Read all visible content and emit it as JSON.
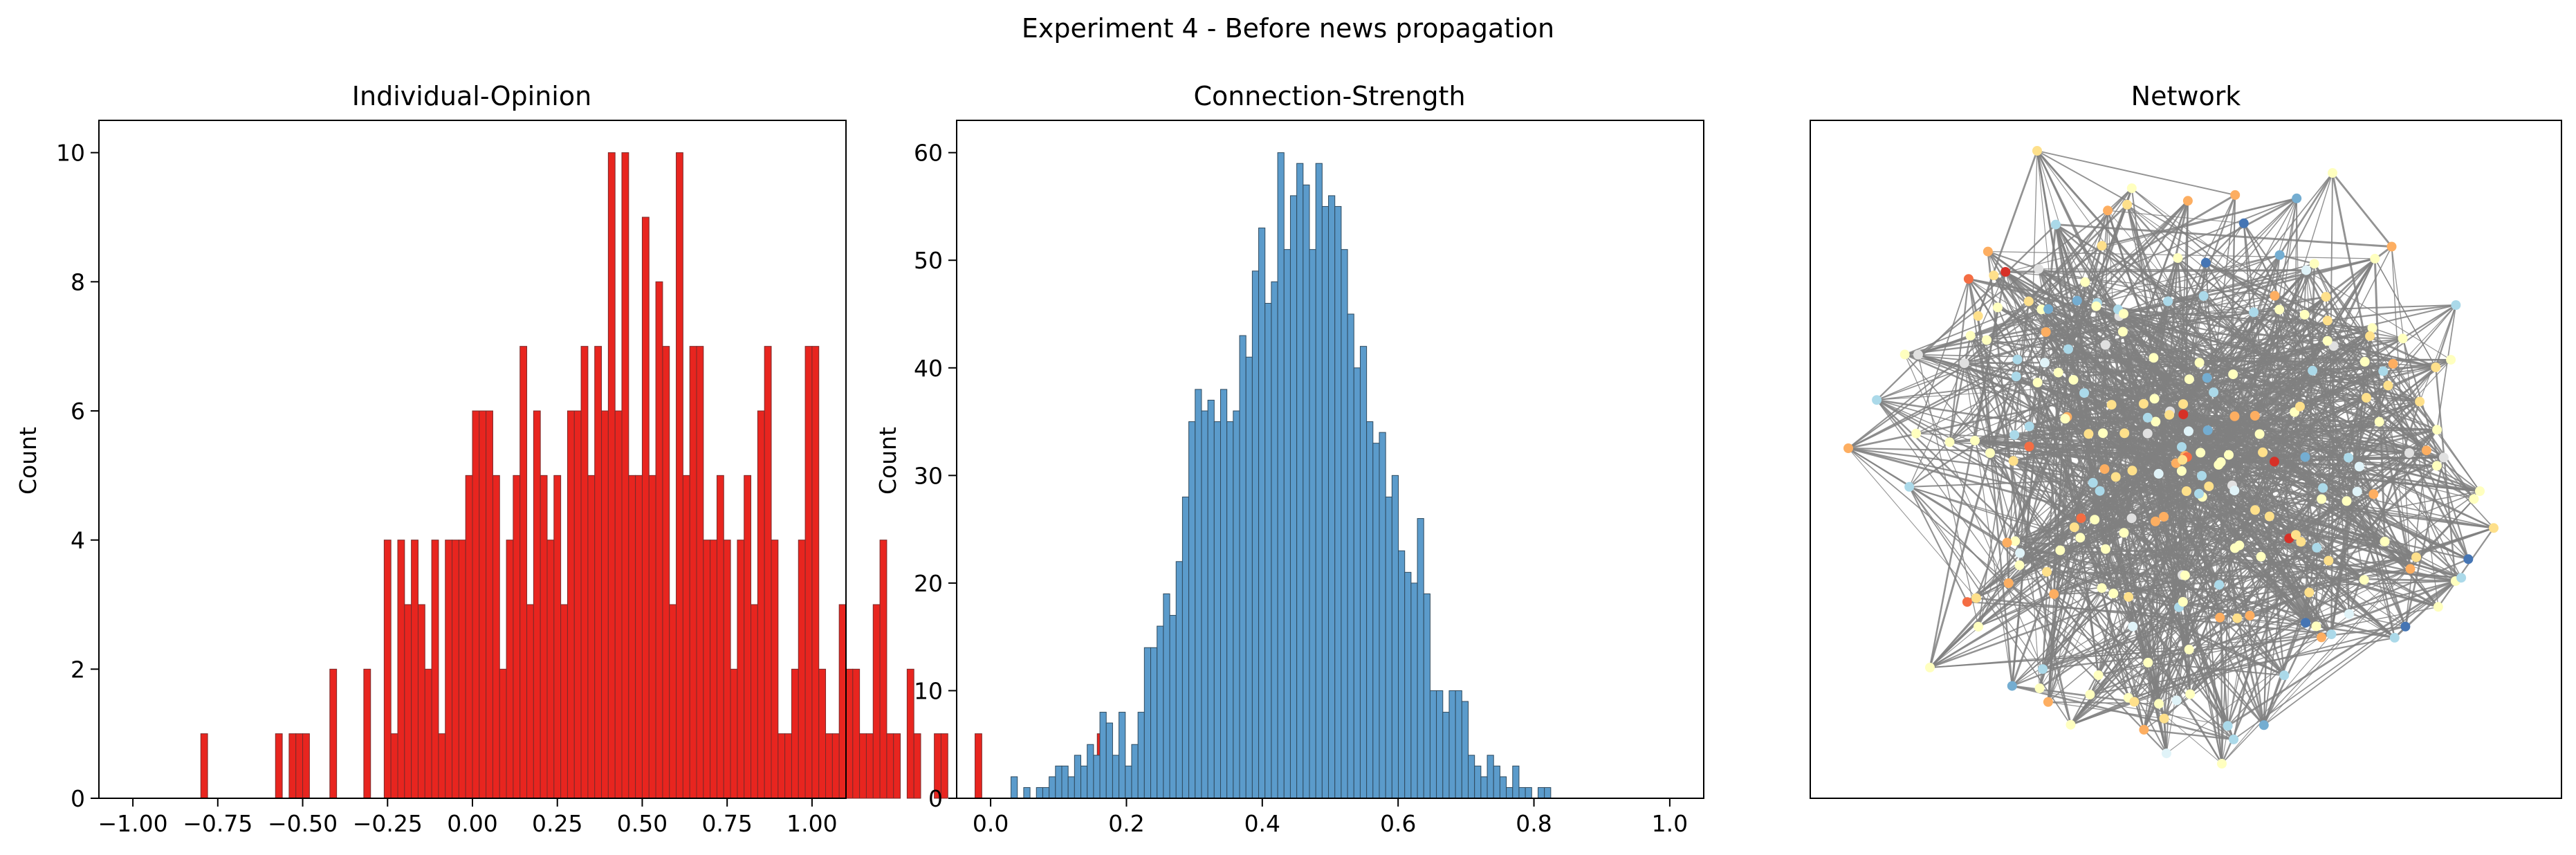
{
  "figure": {
    "suptitle": "Experiment 4 - Before news propagation"
  },
  "chart_data": [
    {
      "type": "bar",
      "title": "Individual-Opinion",
      "xlabel": "",
      "ylabel": "Count",
      "xlim": [
        -1.1,
        1.1
      ],
      "ylim": [
        0,
        10.5
      ],
      "xticks": [
        -1.0,
        -0.75,
        -0.5,
        -0.25,
        0.0,
        0.25,
        0.5,
        0.75,
        1.0
      ],
      "xtick_labels": [
        "−1.00",
        "−0.75",
        "−0.50",
        "−0.25",
        "0.00",
        "0.25",
        "0.50",
        "0.75",
        "1.00"
      ],
      "yticks": [
        0,
        2,
        4,
        6,
        8,
        10
      ],
      "ytick_labels": [
        "0",
        "2",
        "4",
        "6",
        "8",
        "10"
      ],
      "bin_start": -0.8,
      "bin_width": 0.02,
      "color": "#e8251f",
      "edge_color": "#7a2a2a",
      "values": [
        1,
        0,
        0,
        0,
        0,
        0,
        0,
        0,
        0,
        0,
        0,
        1,
        0,
        1,
        1,
        1,
        0,
        0,
        0,
        2,
        0,
        0,
        0,
        0,
        2,
        0,
        0,
        4,
        1,
        4,
        3,
        4,
        3,
        2,
        4,
        1,
        4,
        4,
        4,
        5,
        6,
        6,
        6,
        5,
        2,
        4,
        5,
        7,
        3,
        6,
        5,
        4,
        5,
        3,
        6,
        6,
        7,
        5,
        7,
        6,
        10,
        6,
        10,
        5,
        5,
        9,
        5,
        8,
        7,
        3,
        10,
        5,
        7,
        7,
        4,
        4,
        5,
        4,
        2,
        4,
        5,
        3,
        6,
        7,
        4,
        1,
        1,
        2,
        4,
        7,
        7,
        2,
        1,
        1,
        3,
        2,
        2,
        1,
        1,
        3,
        4,
        1,
        1,
        0,
        2,
        1,
        0,
        0,
        1,
        1,
        0,
        0,
        0,
        0,
        1,
        0,
        0,
        0,
        0,
        0,
        0,
        0,
        0,
        0,
        0,
        0,
        0,
        0,
        0,
        0,
        0,
        0,
        1
      ]
    },
    {
      "type": "bar",
      "title": "Connection-Strength",
      "xlabel": "",
      "ylabel": "Count",
      "xlim": [
        -0.05,
        1.05
      ],
      "ylim": [
        0,
        63
      ],
      "xticks": [
        0.0,
        0.2,
        0.4,
        0.6,
        0.8,
        1.0
      ],
      "xtick_labels": [
        "0.0",
        "0.2",
        "0.4",
        "0.6",
        "0.8",
        "1.0"
      ],
      "yticks": [
        0,
        10,
        20,
        30,
        40,
        50,
        60
      ],
      "ytick_labels": [
        "0",
        "10",
        "20",
        "30",
        "40",
        "50",
        "60"
      ],
      "bin_start": 0.03,
      "bin_width": 0.00935,
      "color": "#5b9bcb",
      "edge_color": "#2f4a5e",
      "values": [
        2,
        0,
        1,
        0,
        1,
        1,
        2,
        3,
        3,
        2,
        4,
        3,
        5,
        4,
        8,
        7,
        4,
        8,
        3,
        5,
        8,
        14,
        14,
        16,
        19,
        17,
        22,
        28,
        35,
        38,
        36,
        37,
        35,
        38,
        35,
        36,
        43,
        41,
        49,
        53,
        46,
        48,
        60,
        51,
        56,
        59,
        57,
        51,
        59,
        55,
        56,
        55,
        51,
        45,
        40,
        42,
        35,
        33,
        34,
        28,
        30,
        23,
        21,
        20,
        26,
        19,
        10,
        10,
        8,
        10,
        10,
        9,
        4,
        3,
        2,
        4,
        3,
        2,
        1,
        3,
        1,
        1,
        0,
        1,
        1
      ]
    },
    {
      "type": "network",
      "title": "Network",
      "node_colors": [
        "#ffffbf",
        "#fee08b",
        "#fdae61",
        "#abd9e9",
        "#74add1",
        "#e0f3f8",
        "#f46d43",
        "#d73027",
        "#4575b4",
        "#e0e0e0"
      ],
      "edge_color": "#808080"
    }
  ]
}
